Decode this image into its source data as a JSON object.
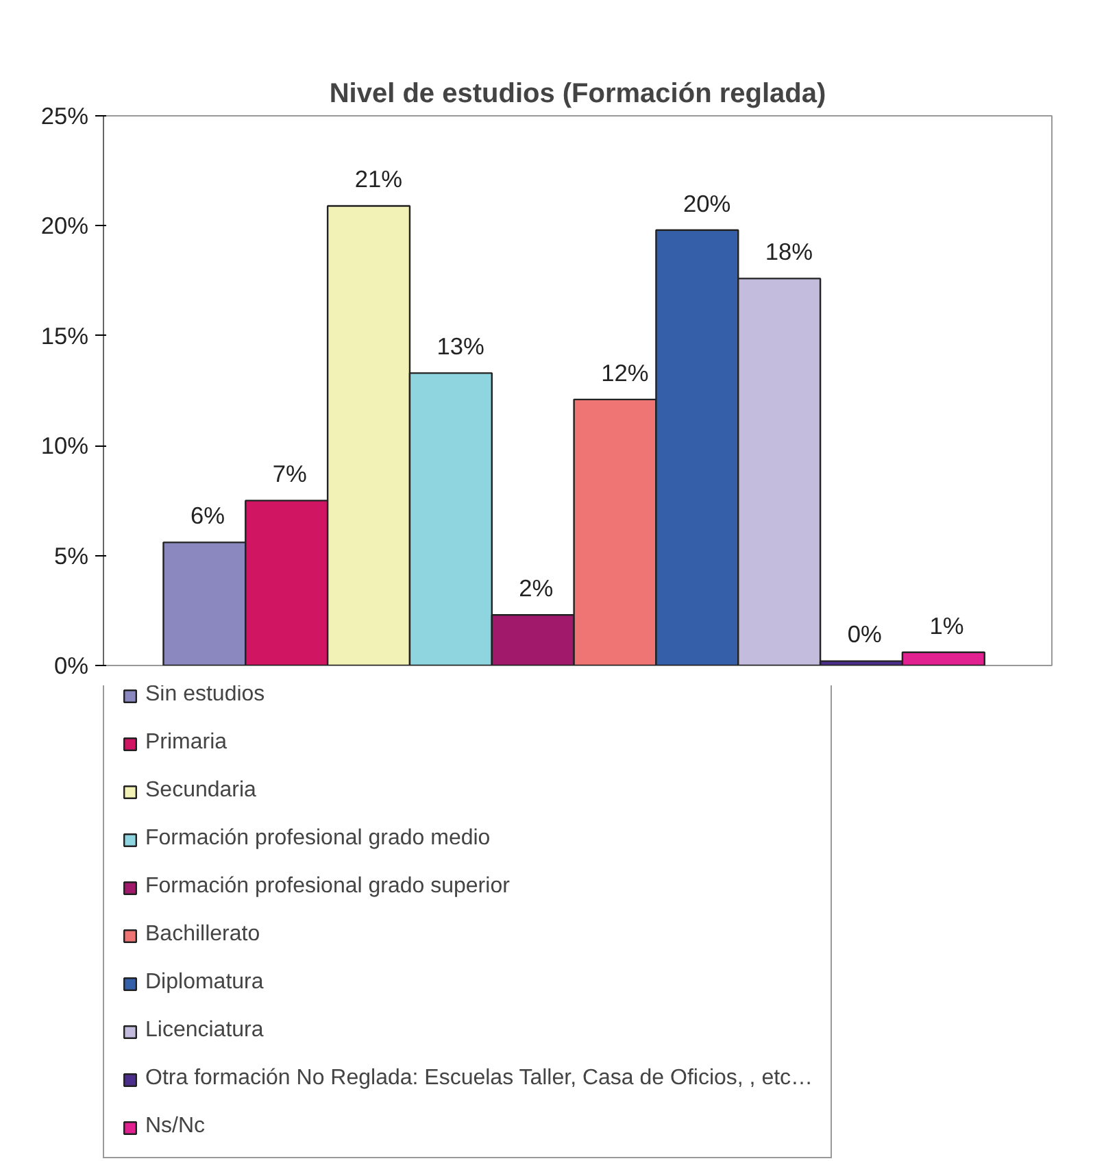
{
  "chart_data": {
    "type": "bar",
    "title": "Nivel de estudios (Formación reglada)",
    "categories": [
      null
    ],
    "ylim": [
      0,
      25
    ],
    "yticks": [
      {
        "value": 0,
        "label": "0%"
      },
      {
        "value": 5,
        "label": "5%"
      },
      {
        "value": 10,
        "label": "10%"
      },
      {
        "value": 15,
        "label": "15%"
      },
      {
        "value": 20,
        "label": "20%"
      },
      {
        "value": 25,
        "label": "25%"
      }
    ],
    "grid": false,
    "legend": "bottom",
    "tick_labels": "y",
    "series": [
      {
        "name": "Sin estudios",
        "color": "#8b88c0",
        "values": [
          5.6
        ],
        "value_labels": [
          "6%"
        ]
      },
      {
        "name": "Primaria",
        "color": "#d01563",
        "values": [
          7.5
        ],
        "value_labels": [
          "7%"
        ]
      },
      {
        "name": "Secundaria",
        "color": "#f2f2b6",
        "values": [
          20.9
        ],
        "value_labels": [
          "21%"
        ]
      },
      {
        "name": "Formación profesional grado medio",
        "color": "#8fd5e0",
        "values": [
          13.3
        ],
        "value_labels": [
          "13%"
        ]
      },
      {
        "name": "Formación profesional grado superior",
        "color": "#a0196a",
        "values": [
          2.3
        ],
        "value_labels": [
          "2%"
        ]
      },
      {
        "name": "Bachillerato",
        "color": "#ef7474",
        "values": [
          12.1
        ],
        "value_labels": [
          "12%"
        ]
      },
      {
        "name": "Diplomatura",
        "color": "#355fa8",
        "values": [
          19.8
        ],
        "value_labels": [
          "20%"
        ]
      },
      {
        "name": "Licenciatura",
        "color": "#c3bcdc",
        "values": [
          17.6
        ],
        "value_labels": [
          "18%"
        ]
      },
      {
        "name": "Otra formación No Reglada: Escuelas Taller, Casa de Oficios, , etc…",
        "color": "#4b2d8c",
        "values": [
          0.2
        ],
        "value_labels": [
          "0%"
        ]
      },
      {
        "name": "Ns/Nc",
        "color": "#e0218f",
        "values": [
          0.6
        ],
        "value_labels": [
          "1%"
        ]
      }
    ]
  }
}
